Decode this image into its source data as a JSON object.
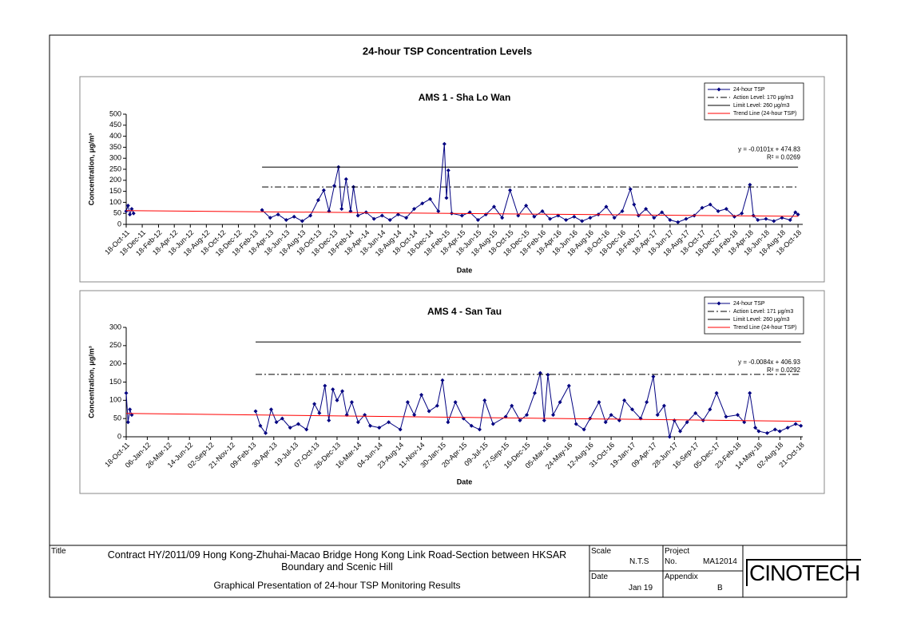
{
  "page_title": "24-hour TSP Concentration Levels",
  "title_block": {
    "title_label": "Title",
    "title": "Contract HY/2011/09 Hong Kong-Zhuhai-Macao Bridge Hong Kong Link Road-Section between HKSAR Boundary and Scenic Hill",
    "subtitle": "Graphical Presentation of 24-hour TSP Monitoring Results",
    "scale_label": "Scale",
    "scale": "N.T.S",
    "project_label": "Project",
    "project_no_label": "No.",
    "project_no": "MA12014",
    "date_label": "Date",
    "date": "Jan 19",
    "appendix_label": "Appendix",
    "appendix": "B",
    "logo": "CINOTECH"
  },
  "chart_data": [
    {
      "type": "line",
      "title": "AMS 1 - Sha Lo Wan",
      "xlabel": "Date",
      "ylabel": "Concentration, μg/m³",
      "legend": "upper right",
      "annotations": [
        "y = -0.0101x + 474.83",
        "R² = 0.0269"
      ],
      "ylim": [
        0,
        500
      ],
      "yticks": [
        0,
        50,
        100,
        150,
        200,
        250,
        300,
        350,
        400,
        450,
        500
      ],
      "xlim": [
        "2011-10-18",
        "2018-11-05"
      ],
      "xticks": [
        {
          "value": "2011-10-18",
          "label": "18-Oct-11"
        },
        {
          "value": "2011-12-18",
          "label": "18-Dec-11"
        },
        {
          "value": "2012-02-18",
          "label": "18-Feb-12"
        },
        {
          "value": "2012-04-18",
          "label": "18-Apr-12"
        },
        {
          "value": "2012-06-18",
          "label": "18-Jun-12"
        },
        {
          "value": "2012-08-18",
          "label": "18-Aug-12"
        },
        {
          "value": "2012-10-18",
          "label": "18-Oct-12"
        },
        {
          "value": "2012-12-18",
          "label": "18-Dec-12"
        },
        {
          "value": "2013-02-18",
          "label": "18-Feb-13"
        },
        {
          "value": "2013-04-18",
          "label": "18-Apr-13"
        },
        {
          "value": "2013-06-18",
          "label": "18-Jun-13"
        },
        {
          "value": "2013-08-18",
          "label": "18-Aug-13"
        },
        {
          "value": "2013-10-18",
          "label": "18-Oct-13"
        },
        {
          "value": "2013-12-18",
          "label": "18-Dec-13"
        },
        {
          "value": "2014-02-18",
          "label": "18-Feb-14"
        },
        {
          "value": "2014-04-18",
          "label": "18-Apr-14"
        },
        {
          "value": "2014-06-18",
          "label": "18-Jun-14"
        },
        {
          "value": "2014-08-18",
          "label": "18-Aug-14"
        },
        {
          "value": "2014-10-18",
          "label": "18-Oct-14"
        },
        {
          "value": "2014-12-18",
          "label": "18-Dec-14"
        },
        {
          "value": "2015-02-18",
          "label": "18-Feb-15"
        },
        {
          "value": "2015-04-18",
          "label": "18-Apr-15"
        },
        {
          "value": "2015-06-18",
          "label": "18-Jun-15"
        },
        {
          "value": "2015-08-18",
          "label": "18-Aug-15"
        },
        {
          "value": "2015-10-18",
          "label": "18-Oct-15"
        },
        {
          "value": "2015-12-18",
          "label": "18-Dec-15"
        },
        {
          "value": "2016-02-18",
          "label": "18-Feb-16"
        },
        {
          "value": "2016-04-18",
          "label": "18-Apr-16"
        },
        {
          "value": "2016-06-18",
          "label": "18-Jun-16"
        },
        {
          "value": "2016-08-18",
          "label": "18-Aug-16"
        },
        {
          "value": "2016-10-18",
          "label": "18-Oct-16"
        },
        {
          "value": "2016-12-18",
          "label": "18-Dec-16"
        },
        {
          "value": "2017-02-18",
          "label": "18-Feb-17"
        },
        {
          "value": "2017-04-18",
          "label": "18-Apr-17"
        },
        {
          "value": "2017-06-18",
          "label": "18-Jun-17"
        },
        {
          "value": "2017-08-18",
          "label": "18-Aug-17"
        },
        {
          "value": "2017-10-18",
          "label": "18-Oct-17"
        },
        {
          "value": "2017-12-18",
          "label": "18-Dec-17"
        },
        {
          "value": "2018-02-18",
          "label": "18-Feb-18"
        },
        {
          "value": "2018-04-18",
          "label": "18-Apr-18"
        },
        {
          "value": "2018-06-18",
          "label": "18-Jun-18"
        },
        {
          "value": "2018-08-18",
          "label": "18-Aug-18"
        },
        {
          "value": "2018-10-18",
          "label": "18-Oct-18"
        }
      ],
      "series": [
        {
          "name": "24-hour TSP",
          "color": "#000080",
          "style": "solid",
          "marker": "diamond",
          "x": [
            "2011-10-18",
            "2011-10-25",
            "2011-11-01",
            "2011-11-08",
            "2011-11-15",
            "2012-06-18",
            "2013-03-18",
            "2013-04-18",
            "2013-05-18",
            "2013-06-18",
            "2013-07-18",
            "2013-08-18",
            "2013-09-18",
            "2013-10-18",
            "2013-11-08",
            "2013-11-28",
            "2013-12-18",
            "2014-01-03",
            "2014-01-15",
            "2014-02-01",
            "2014-02-18",
            "2014-03-01",
            "2014-03-18",
            "2014-04-18",
            "2014-05-18",
            "2014-06-18",
            "2014-07-18",
            "2014-08-18",
            "2014-09-18",
            "2014-10-18",
            "2014-11-18",
            "2014-12-18",
            "2015-01-18",
            "2015-02-10",
            "2015-02-18",
            "2015-02-25",
            "2015-03-10",
            "2015-04-18",
            "2015-05-18",
            "2015-06-18",
            "2015-07-18",
            "2015-08-18",
            "2015-09-18",
            "2015-10-18",
            "2015-11-18",
            "2015-12-18",
            "2016-01-18",
            "2016-02-18",
            "2016-03-18",
            "2016-04-18",
            "2016-05-18",
            "2016-06-18",
            "2016-07-18",
            "2016-08-18",
            "2016-09-18",
            "2016-10-18",
            "2016-11-18",
            "2016-12-18",
            "2017-01-18",
            "2017-02-01",
            "2017-02-18",
            "2017-03-18",
            "2017-04-18",
            "2017-05-18",
            "2017-06-18",
            "2017-07-18",
            "2017-08-18",
            "2017-09-18",
            "2017-10-18",
            "2017-11-18",
            "2017-12-18",
            "2018-01-18",
            "2018-02-18",
            "2018-03-18",
            "2018-04-18",
            "2018-05-01",
            "2018-05-18",
            "2018-06-18",
            "2018-07-18",
            "2018-08-18",
            "2018-09-18",
            "2018-10-08",
            "2018-10-18"
          ],
          "values": [
            60,
            85,
            45,
            70,
            50,
            null,
            65,
            30,
            45,
            20,
            35,
            15,
            40,
            110,
            155,
            60,
            175,
            260,
            70,
            205,
            60,
            170,
            40,
            55,
            25,
            40,
            20,
            45,
            30,
            70,
            95,
            115,
            60,
            365,
            120,
            245,
            50,
            40,
            55,
            20,
            45,
            80,
            30,
            155,
            40,
            85,
            35,
            60,
            25,
            40,
            20,
            35,
            15,
            30,
            45,
            80,
            30,
            60,
            160,
            90,
            40,
            70,
            30,
            55,
            20,
            10,
            25,
            40,
            75,
            90,
            60,
            70,
            35,
            50,
            180,
            40,
            20,
            25,
            15,
            30,
            20,
            55,
            45
          ]
        },
        {
          "name": "Action Level: 170 μg/m3",
          "color": "#000000",
          "style": "dashdot",
          "x": [
            "2013-03-18",
            "2018-10-18"
          ],
          "values": [
            170,
            170
          ]
        },
        {
          "name": "Limit Level: 260 μg/m3",
          "color": "#000000",
          "style": "solid",
          "x": [
            "2013-03-18",
            "2018-10-18"
          ],
          "values": [
            260,
            260
          ]
        },
        {
          "name": "Trend Line (24-hour TSP)",
          "color": "#ff0000",
          "style": "solid",
          "x": [
            "2011-10-18",
            "2018-10-18"
          ],
          "values": [
            62.4,
            36.6
          ]
        }
      ]
    },
    {
      "type": "line",
      "title": "AMS 4 - San Tau",
      "xlabel": "Date",
      "ylabel": "Concentration, μg/m³",
      "legend": "upper right",
      "annotations": [
        "y = -0.0084x + 406.93",
        "R² = 0.0292"
      ],
      "ylim": [
        0,
        300
      ],
      "yticks": [
        0,
        50,
        100,
        150,
        200,
        250,
        300
      ],
      "xlim": [
        "2011-10-18",
        "2018-10-28"
      ],
      "xticks": [
        {
          "value": "2011-10-18",
          "label": "18-Oct-11"
        },
        {
          "value": "2012-01-06",
          "label": "06-Jan-12"
        },
        {
          "value": "2012-03-26",
          "label": "26-Mar-12"
        },
        {
          "value": "2012-06-14",
          "label": "14-Jun-12"
        },
        {
          "value": "2012-09-02",
          "label": "02-Sep-12"
        },
        {
          "value": "2012-11-21",
          "label": "21-Nov-12"
        },
        {
          "value": "2013-02-09",
          "label": "09-Feb-13"
        },
        {
          "value": "2013-04-30",
          "label": "30-Apr-13"
        },
        {
          "value": "2013-07-19",
          "label": "19-Jul-13"
        },
        {
          "value": "2013-10-07",
          "label": "07-Oct-13"
        },
        {
          "value": "2013-12-26",
          "label": "26-Dec-13"
        },
        {
          "value": "2014-03-16",
          "label": "16-Mar-14"
        },
        {
          "value": "2014-06-04",
          "label": "04-Jun-14"
        },
        {
          "value": "2014-08-23",
          "label": "23-Aug-14"
        },
        {
          "value": "2014-11-11",
          "label": "11-Nov-14"
        },
        {
          "value": "2015-01-30",
          "label": "30-Jan-15"
        },
        {
          "value": "2015-04-20",
          "label": "20-Apr-15"
        },
        {
          "value": "2015-07-09",
          "label": "09-Jul-15"
        },
        {
          "value": "2015-09-27",
          "label": "27-Sep-15"
        },
        {
          "value": "2015-12-16",
          "label": "16-Dec-15"
        },
        {
          "value": "2016-03-05",
          "label": "05-Mar-16"
        },
        {
          "value": "2016-05-24",
          "label": "24-May-16"
        },
        {
          "value": "2016-08-12",
          "label": "12-Aug-16"
        },
        {
          "value": "2016-10-31",
          "label": "31-Oct-16"
        },
        {
          "value": "2017-01-19",
          "label": "19-Jan-17"
        },
        {
          "value": "2017-04-09",
          "label": "09-Apr-17"
        },
        {
          "value": "2017-06-28",
          "label": "28-Jun-17"
        },
        {
          "value": "2017-09-16",
          "label": "16-Sep-17"
        },
        {
          "value": "2017-12-05",
          "label": "05-Dec-17"
        },
        {
          "value": "2018-02-23",
          "label": "23-Feb-18"
        },
        {
          "value": "2018-05-14",
          "label": "14-May-18"
        },
        {
          "value": "2018-08-02",
          "label": "02-Aug-18"
        },
        {
          "value": "2018-10-21",
          "label": "21-Oct-18"
        }
      ],
      "series": [
        {
          "name": "24-hour TSP",
          "color": "#000080",
          "style": "solid",
          "marker": "diamond",
          "x": [
            "2011-10-18",
            "2011-10-25",
            "2011-11-01",
            "2011-11-08",
            "2012-06-18",
            "2013-02-20",
            "2013-03-10",
            "2013-03-30",
            "2013-04-20",
            "2013-05-10",
            "2013-06-01",
            "2013-07-01",
            "2013-08-01",
            "2013-09-01",
            "2013-10-01",
            "2013-10-20",
            "2013-11-10",
            "2013-11-25",
            "2013-12-10",
            "2013-12-26",
            "2014-01-15",
            "2014-02-01",
            "2014-02-20",
            "2014-03-16",
            "2014-04-10",
            "2014-05-01",
            "2014-06-04",
            "2014-07-10",
            "2014-08-23",
            "2014-09-20",
            "2014-10-15",
            "2014-11-11",
            "2014-12-10",
            "2015-01-10",
            "2015-01-30",
            "2015-02-20",
            "2015-03-20",
            "2015-04-20",
            "2015-05-20",
            "2015-06-20",
            "2015-07-09",
            "2015-08-10",
            "2015-09-27",
            "2015-10-20",
            "2015-11-20",
            "2015-12-16",
            "2016-01-15",
            "2016-02-05",
            "2016-02-20",
            "2016-03-05",
            "2016-03-25",
            "2016-04-20",
            "2016-05-24",
            "2016-06-20",
            "2016-07-20",
            "2016-08-12",
            "2016-09-15",
            "2016-10-10",
            "2016-10-31",
            "2016-12-01",
            "2016-12-20",
            "2017-01-19",
            "2017-02-20",
            "2017-03-15",
            "2017-04-09",
            "2017-04-25",
            "2017-05-20",
            "2017-06-10",
            "2017-06-28",
            "2017-07-20",
            "2017-08-15",
            "2017-09-16",
            "2017-10-15",
            "2017-11-10",
            "2017-12-05",
            "2018-01-10",
            "2018-02-23",
            "2018-03-20",
            "2018-04-10",
            "2018-05-01",
            "2018-05-14",
            "2018-06-15",
            "2018-07-15",
            "2018-08-02",
            "2018-09-01",
            "2018-10-01",
            "2018-10-21"
          ],
          "values": [
            120,
            40,
            75,
            60,
            null,
            70,
            30,
            10,
            75,
            40,
            50,
            25,
            35,
            20,
            90,
            65,
            140,
            45,
            130,
            100,
            125,
            60,
            95,
            40,
            60,
            30,
            25,
            40,
            20,
            95,
            60,
            115,
            70,
            85,
            155,
            40,
            95,
            50,
            30,
            20,
            100,
            35,
            55,
            85,
            45,
            60,
            120,
            175,
            45,
            170,
            60,
            95,
            140,
            35,
            20,
            50,
            95,
            40,
            60,
            45,
            100,
            75,
            50,
            95,
            165,
            60,
            85,
            0,
            45,
            15,
            40,
            65,
            45,
            75,
            120,
            55,
            60,
            40,
            120,
            25,
            15,
            10,
            20,
            15,
            25,
            35,
            30
          ]
        },
        {
          "name": "Action Level: 171 μg/m3",
          "color": "#000000",
          "style": "dashdot",
          "x": [
            "2013-02-20",
            "2018-10-21"
          ],
          "values": [
            171,
            171
          ]
        },
        {
          "name": "Limit Level: 260 μg/m3",
          "color": "#000000",
          "style": "solid",
          "x": [
            "2013-02-20",
            "2018-10-21"
          ],
          "values": [
            260,
            260
          ]
        },
        {
          "name": "Trend Line (24-hour TSP)",
          "color": "#ff0000",
          "style": "solid",
          "x": [
            "2011-10-18",
            "2018-10-21"
          ],
          "values": [
            63.9,
            42.4
          ]
        }
      ]
    }
  ]
}
